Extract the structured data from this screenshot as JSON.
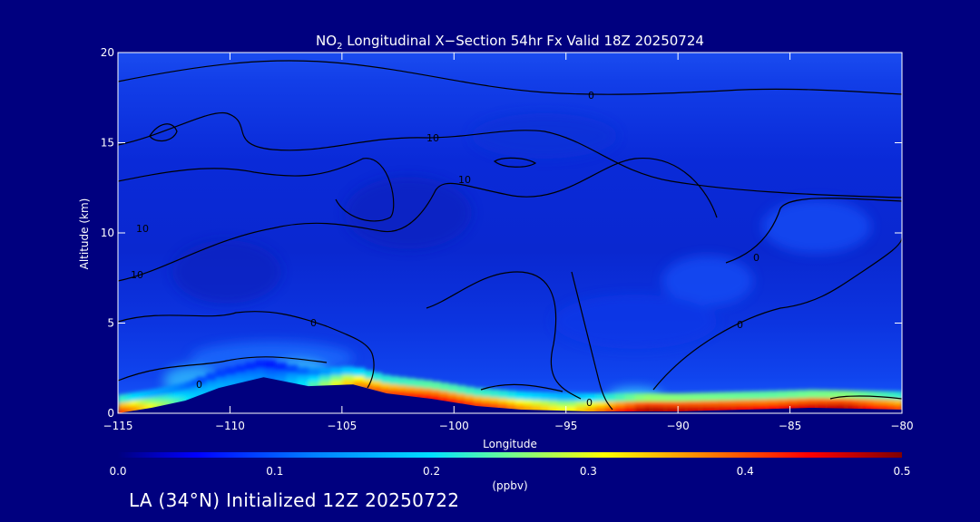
{
  "chart_data": {
    "type": "heatmap",
    "title_prefix": "NO",
    "title_sub": "2",
    "title_rest": " Longitudinal X−Section 54hr  Fx Valid 18Z 20250724",
    "xlabel": "Longitude",
    "ylabel": "Altitude (km)",
    "xlim": [
      -115,
      -80
    ],
    "ylim": [
      0,
      20
    ],
    "x_ticks": [
      -115,
      -110,
      -105,
      -100,
      -95,
      -90,
      -85,
      -80
    ],
    "x_tick_labels": [
      "−115",
      "−110",
      "−105",
      "−100",
      "−95",
      "−90",
      "−85",
      "−80"
    ],
    "y_ticks": [
      0,
      5,
      10,
      15,
      20
    ],
    "y_tick_labels": [
      "0",
      "5",
      "10",
      "15",
      "20"
    ],
    "colorbar": {
      "min": 0.0,
      "max": 0.5,
      "ticks": [
        0.0,
        0.1,
        0.2,
        0.3,
        0.4,
        0.5
      ],
      "tick_labels": [
        "0.0",
        "0.1",
        "0.2",
        "0.3",
        "0.4",
        "0.5"
      ],
      "unit_label": "(ppbv)"
    },
    "terrain": [
      {
        "lon": -115.0,
        "alt": 0.0
      },
      {
        "lon": -113.5,
        "alt": 0.3
      },
      {
        "lon": -112.0,
        "alt": 0.7
      },
      {
        "lon": -110.5,
        "alt": 1.4
      },
      {
        "lon": -108.5,
        "alt": 2.0
      },
      {
        "lon": -106.5,
        "alt": 1.5
      },
      {
        "lon": -104.5,
        "alt": 1.6
      },
      {
        "lon": -103.0,
        "alt": 1.1
      },
      {
        "lon": -101.0,
        "alt": 0.8
      },
      {
        "lon": -99.0,
        "alt": 0.4
      },
      {
        "lon": -97.0,
        "alt": 0.2
      },
      {
        "lon": -94.0,
        "alt": 0.1
      },
      {
        "lon": -90.0,
        "alt": 0.1
      },
      {
        "lon": -87.0,
        "alt": 0.2
      },
      {
        "lon": -84.0,
        "alt": 0.3
      },
      {
        "lon": -80.0,
        "alt": 0.2
      }
    ],
    "surface_no2": [
      {
        "lon": -115.0,
        "value": 0.42
      },
      {
        "lon": -113.5,
        "value": 0.3
      },
      {
        "lon": -111.5,
        "value": 0.18
      },
      {
        "lon": -108.0,
        "value": 0.12
      },
      {
        "lon": -104.0,
        "value": 0.38
      },
      {
        "lon": -101.0,
        "value": 0.44
      },
      {
        "lon": -98.0,
        "value": 0.4
      },
      {
        "lon": -95.0,
        "value": 0.3
      },
      {
        "lon": -91.5,
        "value": 0.48
      },
      {
        "lon": -89.0,
        "value": 0.46
      },
      {
        "lon": -86.0,
        "value": 0.44
      },
      {
        "lon": -82.5,
        "value": 0.47
      },
      {
        "lon": -80.0,
        "value": 0.4
      }
    ],
    "contour_labels": [
      "10",
      "10",
      "10",
      "10",
      "0",
      "0",
      "0",
      "0",
      "0",
      "0"
    ]
  },
  "footer": {
    "text": "LA (34°N) Initialized 12Z 20250722"
  }
}
